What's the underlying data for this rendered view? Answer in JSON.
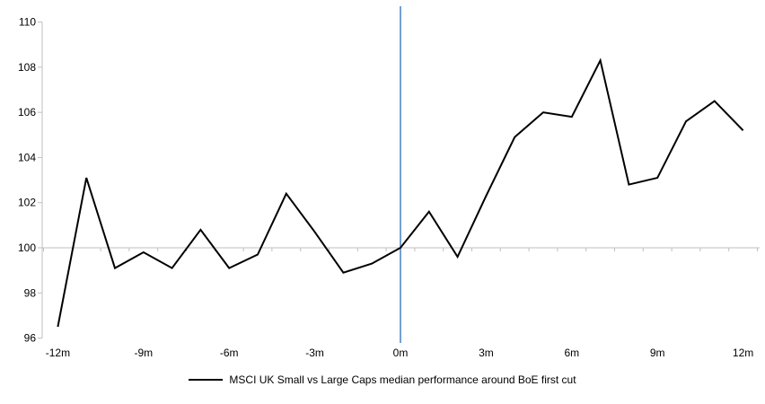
{
  "chart_data": {
    "type": "line",
    "title": "",
    "x": [
      -12,
      -11,
      -10,
      -9,
      -8,
      -7,
      -6,
      -5,
      -4,
      -3,
      -2,
      -1,
      0,
      1,
      2,
      3,
      4,
      5,
      6,
      7,
      8,
      9,
      10,
      11,
      12
    ],
    "series": [
      {
        "name": "MSCI UK Small vs Large Caps median performance around BoE first cut",
        "color": "#000000",
        "values": [
          96.5,
          103.1,
          99.1,
          99.8,
          99.1,
          100.8,
          99.1,
          99.7,
          102.4,
          100.7,
          98.9,
          99.3,
          100.0,
          101.6,
          99.6,
          102.3,
          104.9,
          106.0,
          105.8,
          108.3,
          102.8,
          103.1,
          105.6,
          106.5,
          105.2
        ]
      }
    ],
    "x_tick_values": [
      -12,
      -9,
      -6,
      -3,
      0,
      3,
      6,
      9,
      12
    ],
    "x_tick_labels": [
      "-12m",
      "-9m",
      "-6m",
      "-3m",
      "0m",
      "3m",
      "6m",
      "9m",
      "12m"
    ],
    "y_ticks": [
      96,
      98,
      100,
      102,
      104,
      106,
      108,
      110
    ],
    "ylim": [
      96,
      110
    ],
    "xlim": [
      -12,
      12
    ],
    "baseline_value": 100,
    "event_line_x": 0,
    "grid": "baseline-only",
    "legend_position": "bottom",
    "colors": {
      "series_line": "#000000",
      "event_line": "#5B8FC9",
      "axis": "#BFBFBF",
      "baseline_gridline": "#BFBFBF",
      "tick_text": "#000000"
    }
  }
}
